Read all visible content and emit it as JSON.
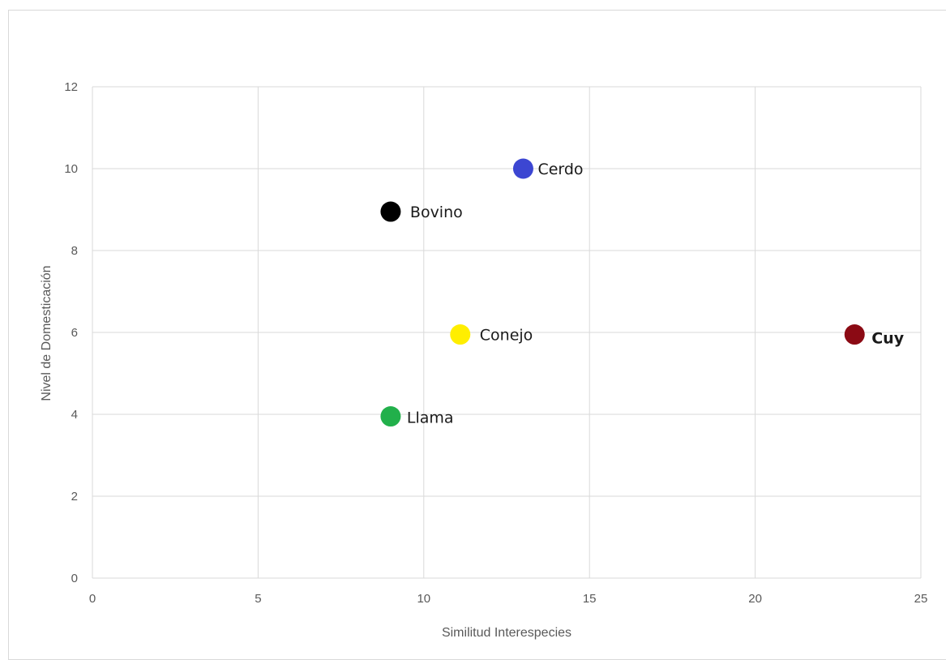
{
  "chart_data": {
    "type": "scatter",
    "xlabel": "Similitud Interespecies",
    "ylabel": "Nivel de Domesticación",
    "xlim": [
      0,
      25
    ],
    "ylim": [
      0,
      12
    ],
    "x_ticks": [
      0,
      5,
      10,
      15,
      20,
      25
    ],
    "y_ticks": [
      0,
      2,
      4,
      6,
      8,
      10,
      12
    ],
    "grid": true,
    "points": [
      {
        "label": "Cerdo",
        "x": 13,
        "y": 10,
        "color": "#3c46d2"
      },
      {
        "label": "Bovino",
        "x": 9,
        "y": 8.95,
        "color": "#000000"
      },
      {
        "label": "Conejo",
        "x": 11.1,
        "y": 5.95,
        "color": "#ffee00"
      },
      {
        "label": "Cuy",
        "x": 23,
        "y": 5.95,
        "color": "#8b0a14",
        "bold": true
      },
      {
        "label": "Llama",
        "x": 9,
        "y": 3.95,
        "color": "#22b04b"
      }
    ]
  }
}
